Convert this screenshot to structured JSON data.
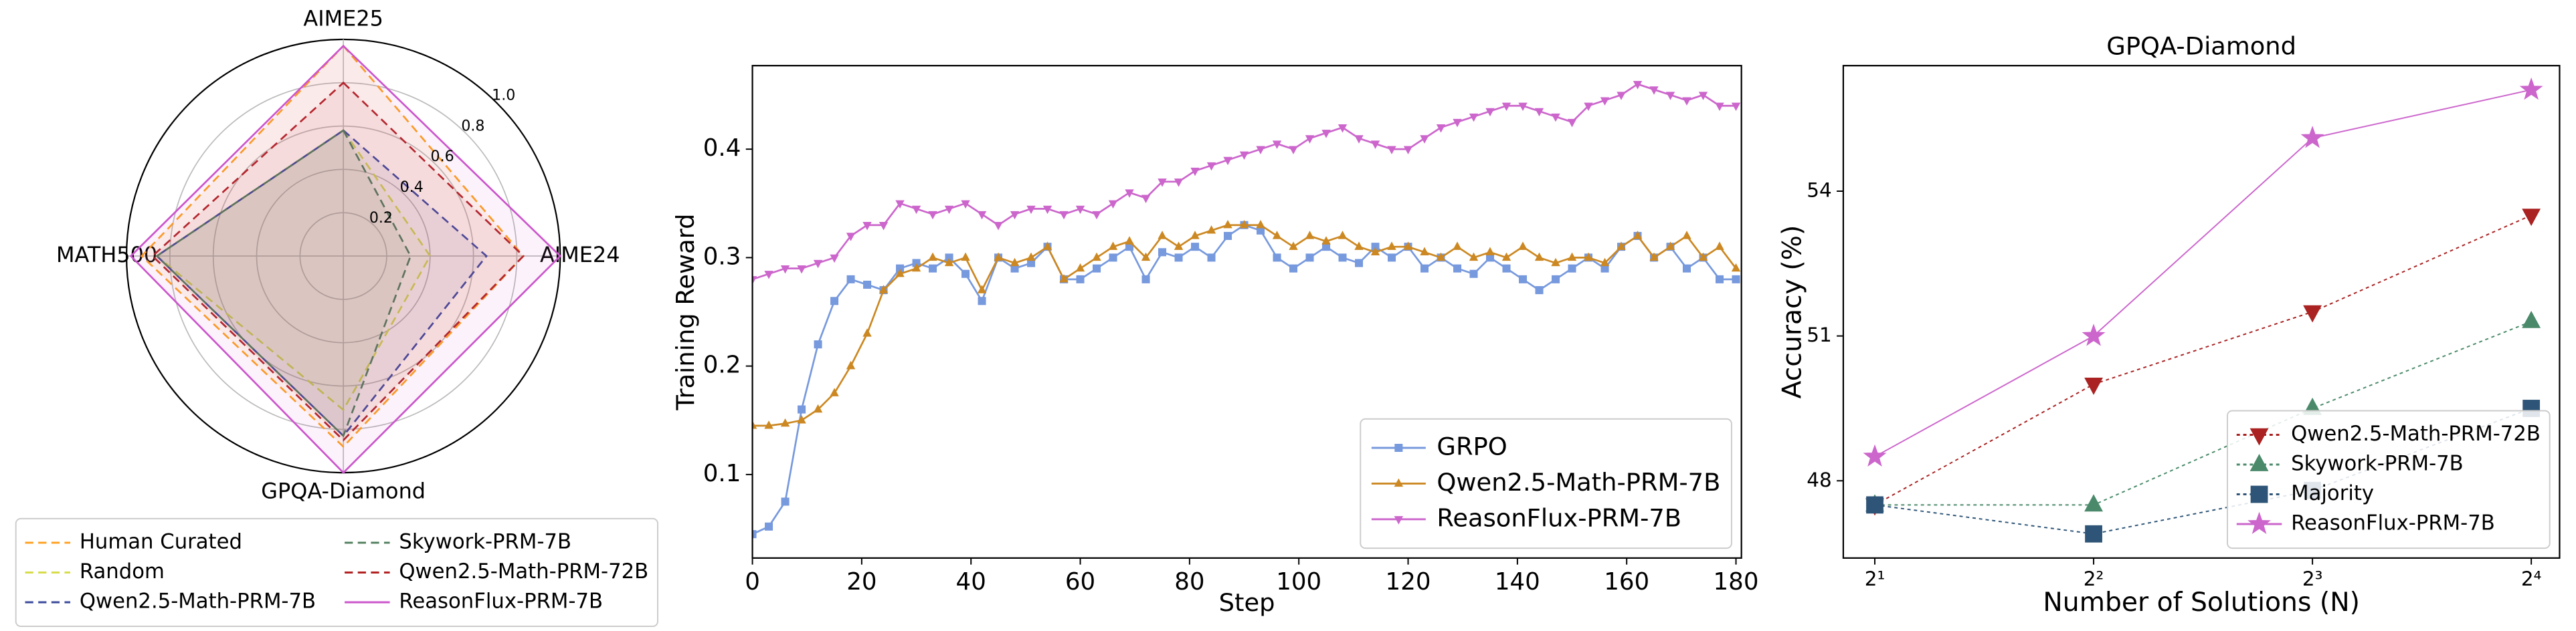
{
  "chart_data": [
    {
      "type": "radar",
      "axes": [
        "AIME25",
        "AIME24",
        "GPQA-Diamond",
        "MATH500"
      ],
      "rlim": [
        0,
        1
      ],
      "rticks": [
        0.2,
        0.4,
        0.6,
        0.8,
        {
          "value": 1,
          "label": "1.0"
        }
      ],
      "legend": "below",
      "series": [
        {
          "name": "Human Curated",
          "color": "#ff9f1c",
          "linestyle": "dashed",
          "values": [
            0.97,
            0.83,
            0.88,
            0.93
          ]
        },
        {
          "name": "Random",
          "color": "#d6dc4a",
          "linestyle": "dashed",
          "values": [
            0.58,
            0.4,
            0.71,
            0.86
          ]
        },
        {
          "name": "Qwen2.5-Math-PRM-7B",
          "color": "#3b4a9c",
          "linestyle": "dashed",
          "values": [
            0.58,
            0.66,
            0.83,
            0.86
          ]
        },
        {
          "name": "Skywork-PRM-7B",
          "color": "#4e7d5b",
          "linestyle": "dashed",
          "values": [
            0.58,
            0.31,
            0.83,
            0.86
          ]
        },
        {
          "name": "Qwen2.5-Math-PRM-72B",
          "color": "#b22222",
          "linestyle": "dashed",
          "values": [
            0.8,
            0.83,
            0.85,
            0.88
          ]
        },
        {
          "name": "ReasonFlux-PRM-7B",
          "color": "#cc55cc",
          "linestyle": "solid",
          "values": [
            0.97,
            1.0,
            1.0,
            0.98
          ]
        }
      ]
    },
    {
      "type": "line",
      "x_label": "Step",
      "y_label": "Training Reward",
      "xlim": [
        0,
        181
      ],
      "ylim": [
        0.023,
        0.477
      ],
      "xticks": [
        0,
        20,
        40,
        60,
        80,
        100,
        120,
        140,
        160,
        180
      ],
      "yticks": [
        0.1,
        0.2,
        0.3,
        0.4
      ],
      "legend": "lower right",
      "x": [
        0,
        3,
        6,
        9,
        12,
        15,
        18,
        21,
        24,
        27,
        30,
        33,
        36,
        39,
        42,
        45,
        48,
        51,
        54,
        57,
        60,
        63,
        66,
        69,
        72,
        75,
        78,
        81,
        84,
        87,
        90,
        93,
        96,
        99,
        102,
        105,
        108,
        111,
        114,
        117,
        120,
        123,
        126,
        129,
        132,
        135,
        138,
        141,
        144,
        147,
        150,
        153,
        156,
        159,
        162,
        165,
        168,
        171,
        174,
        177,
        180
      ],
      "series": [
        {
          "name": "GRPO",
          "color": "#7799dd",
          "linestyle": "solid",
          "marker": "square",
          "values": [
            0.045,
            0.052,
            0.075,
            0.16,
            0.22,
            0.26,
            0.28,
            0.275,
            0.27,
            0.29,
            0.295,
            0.29,
            0.3,
            0.285,
            0.26,
            0.3,
            0.29,
            0.295,
            0.31,
            0.28,
            0.28,
            0.29,
            0.3,
            0.31,
            0.28,
            0.305,
            0.3,
            0.31,
            0.3,
            0.32,
            0.33,
            0.325,
            0.3,
            0.29,
            0.3,
            0.31,
            0.3,
            0.295,
            0.31,
            0.3,
            0.31,
            0.29,
            0.3,
            0.29,
            0.285,
            0.3,
            0.29,
            0.28,
            0.27,
            0.28,
            0.29,
            0.3,
            0.29,
            0.31,
            0.32,
            0.3,
            0.31,
            0.29,
            0.3,
            0.28,
            0.28
          ]
        },
        {
          "name": "Qwen2.5-Math-PRM-7B",
          "color": "#cc8822",
          "linestyle": "solid",
          "marker": "triangle_up",
          "values": [
            0.145,
            0.145,
            0.147,
            0.15,
            0.16,
            0.175,
            0.2,
            0.23,
            0.27,
            0.285,
            0.29,
            0.3,
            0.295,
            0.3,
            0.27,
            0.3,
            0.295,
            0.3,
            0.31,
            0.28,
            0.29,
            0.3,
            0.31,
            0.315,
            0.3,
            0.32,
            0.31,
            0.32,
            0.325,
            0.33,
            0.33,
            0.33,
            0.32,
            0.31,
            0.32,
            0.315,
            0.32,
            0.31,
            0.305,
            0.31,
            0.31,
            0.305,
            0.3,
            0.31,
            0.3,
            0.305,
            0.3,
            0.31,
            0.3,
            0.295,
            0.3,
            0.3,
            0.295,
            0.31,
            0.32,
            0.3,
            0.31,
            0.32,
            0.3,
            0.31,
            0.29
          ]
        },
        {
          "name": "ReasonFlux-PRM-7B",
          "color": "#cc66cc",
          "linestyle": "solid",
          "marker": "triangle_down",
          "values": [
            0.28,
            0.285,
            0.29,
            0.29,
            0.295,
            0.3,
            0.32,
            0.33,
            0.33,
            0.35,
            0.345,
            0.34,
            0.345,
            0.35,
            0.34,
            0.33,
            0.34,
            0.345,
            0.345,
            0.34,
            0.345,
            0.34,
            0.35,
            0.36,
            0.355,
            0.37,
            0.37,
            0.38,
            0.385,
            0.39,
            0.395,
            0.4,
            0.405,
            0.4,
            0.41,
            0.415,
            0.42,
            0.41,
            0.405,
            0.4,
            0.4,
            0.41,
            0.42,
            0.425,
            0.43,
            0.435,
            0.44,
            0.44,
            0.435,
            0.43,
            0.425,
            0.44,
            0.445,
            0.45,
            0.46,
            0.455,
            0.45,
            0.445,
            0.45,
            0.44,
            0.44
          ]
        }
      ]
    },
    {
      "type": "line",
      "title": "GPQA-Diamond",
      "x_label": "Number of Solutions (N)",
      "y_label": "Accuracy (%)",
      "xscale": "log2",
      "xlim": [
        1.81,
        17.5
      ],
      "ylim": [
        46.4,
        56.6
      ],
      "xticks": [
        {
          "value": 2,
          "label": "2¹"
        },
        {
          "value": 4,
          "label": "2²"
        },
        {
          "value": 8,
          "label": "2³"
        },
        {
          "value": 16,
          "label": "2⁴"
        }
      ],
      "yticks": [
        48,
        51,
        54
      ],
      "legend": "lower right",
      "x": [
        2,
        4,
        8,
        16
      ],
      "series": [
        {
          "name": "Qwen2.5-Math-PRM-72B",
          "color": "#aa2222",
          "linestyle": "dotted",
          "marker": "triangle_down",
          "values": [
            47.5,
            50.0,
            51.5,
            53.5
          ]
        },
        {
          "name": "Skywork-PRM-7B",
          "color": "#4a8a6a",
          "linestyle": "dotted",
          "marker": "triangle_up",
          "values": [
            47.5,
            47.5,
            49.5,
            51.3
          ]
        },
        {
          "name": "Majority",
          "color": "#2e5577",
          "linestyle": "dotted",
          "marker": "square",
          "values": [
            47.5,
            46.9,
            47.8,
            49.5
          ]
        },
        {
          "name": "ReasonFlux-PRM-7B",
          "color": "#cc66cc",
          "linestyle": "solid",
          "marker": "star",
          "values": [
            48.5,
            51.0,
            55.1,
            56.1
          ]
        }
      ]
    }
  ]
}
